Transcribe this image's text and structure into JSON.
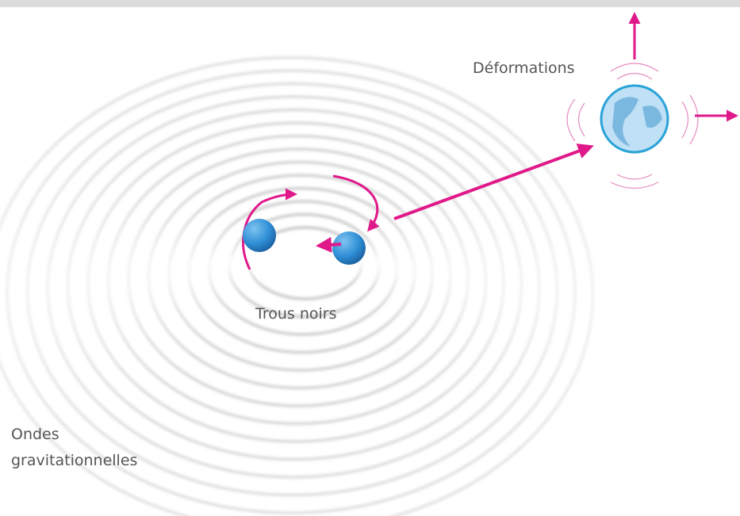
{
  "labels": {
    "deformations": "Déformations",
    "black_holes": "Trous noirs",
    "waves": [
      "Ondes",
      "gravitationnelles"
    ]
  }
}
